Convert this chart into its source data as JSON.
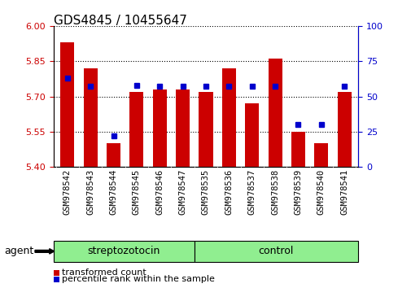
{
  "title": "GDS4845 / 10455647",
  "samples": [
    "GSM978542",
    "GSM978543",
    "GSM978544",
    "GSM978545",
    "GSM978546",
    "GSM978547",
    "GSM978535",
    "GSM978536",
    "GSM978537",
    "GSM978538",
    "GSM978539",
    "GSM978540",
    "GSM978541"
  ],
  "groups": [
    "streptozotocin",
    "streptozotocin",
    "streptozotocin",
    "streptozotocin",
    "streptozotocin",
    "streptozotocin",
    "control",
    "control",
    "control",
    "control",
    "control",
    "control",
    "control"
  ],
  "n_strep": 6,
  "transformed_count": [
    5.93,
    5.82,
    5.5,
    5.72,
    5.73,
    5.73,
    5.72,
    5.82,
    5.67,
    5.86,
    5.55,
    5.5,
    5.72
  ],
  "percentile_rank": [
    63,
    57,
    22,
    58,
    57,
    57,
    57,
    57,
    57,
    57,
    30,
    30,
    57
  ],
  "baseline": 5.4,
  "ylim_left": [
    5.4,
    6.0
  ],
  "ylim_right": [
    0,
    100
  ],
  "yticks_left": [
    5.4,
    5.55,
    5.7,
    5.85,
    6.0
  ],
  "yticks_right": [
    0,
    25,
    50,
    75,
    100
  ],
  "bar_color": "#cc0000",
  "dot_color": "#0000cc",
  "group_fill": "#90ee90",
  "group_edge": "#000000",
  "xtick_bg": "#c8c8c8",
  "legend_items": [
    {
      "label": "transformed count",
      "color": "#cc0000"
    },
    {
      "label": "percentile rank within the sample",
      "color": "#0000cc"
    }
  ],
  "agent_label": "agent",
  "tick_label_color_left": "#cc0000",
  "tick_label_color_right": "#0000cc",
  "title_fontsize": 11,
  "axis_fontsize": 8,
  "tick_fontsize": 8,
  "sample_fontsize": 7.5,
  "group_fontsize": 9,
  "legend_fontsize": 8
}
